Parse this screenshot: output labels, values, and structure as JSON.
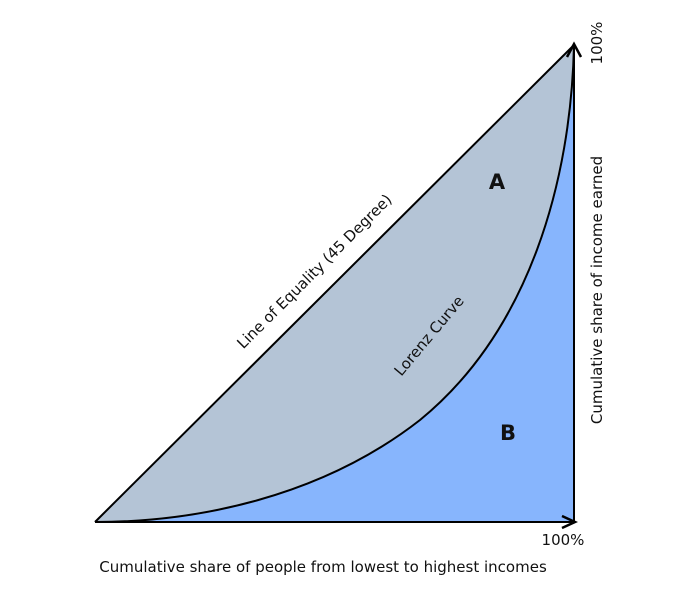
{
  "diagram": {
    "region_a_label": "A",
    "region_b_label": "B",
    "equality_line_label": "Line of Equality (45 Degree)",
    "lorenz_curve_label": "Lorenz Curve",
    "x_axis_label": "Cumulative share of people from lowest to highest incomes",
    "y_axis_label": "Cumulative share of income earned",
    "x_axis_max_label": "100%",
    "y_axis_max_label": "100%"
  },
  "colors": {
    "region_a_fill": "#b4c4d6",
    "region_b_fill": "#87b5fd",
    "stroke": "#000000"
  }
}
